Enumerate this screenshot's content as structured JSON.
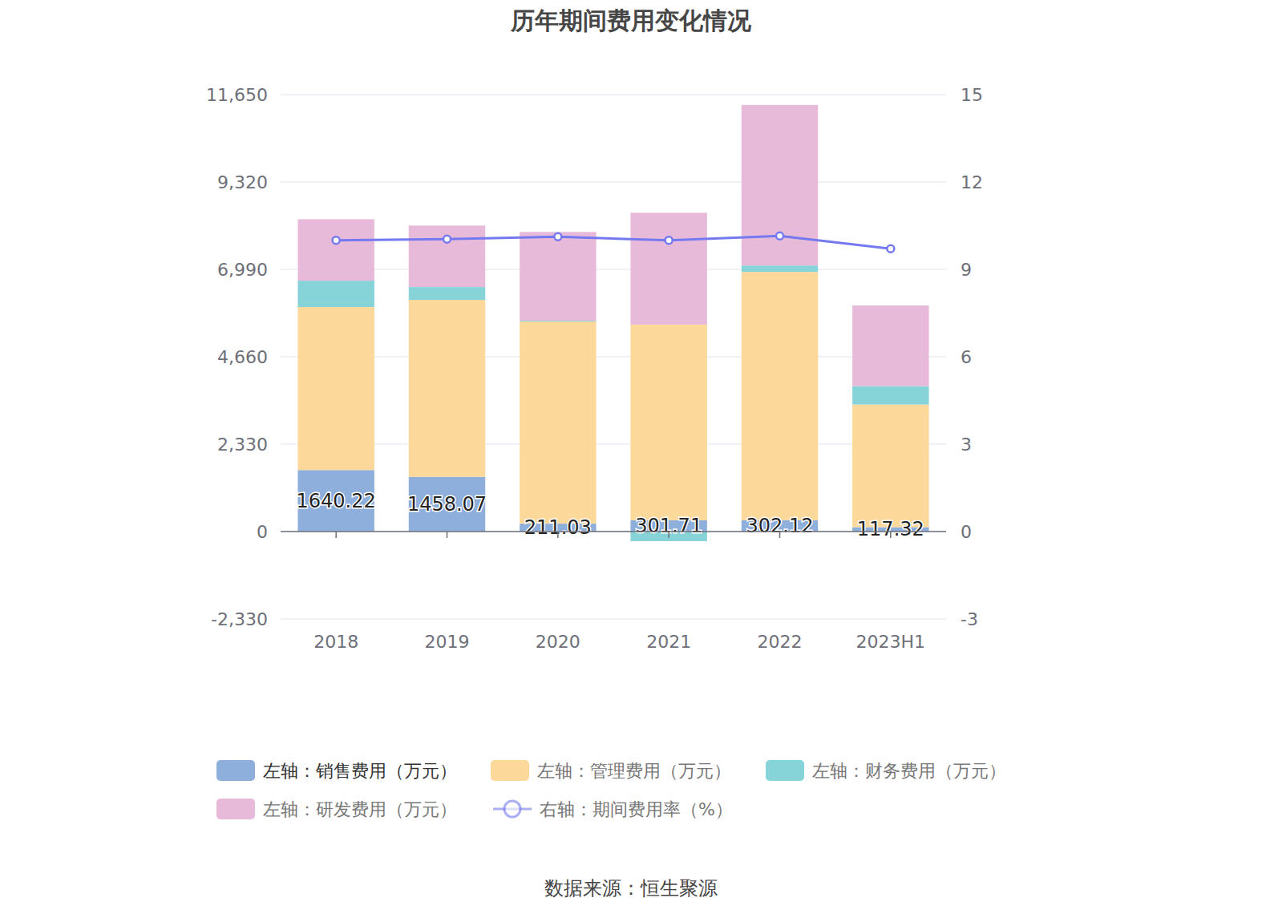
{
  "chart_data": {
    "type": "bar",
    "title": "历年期间费用变化情况",
    "source": "数据来源：恒生聚源",
    "categories": [
      "2018",
      "2019",
      "2020",
      "2021",
      "2022",
      "2023H1"
    ],
    "stacked": true,
    "grid": true,
    "legend": "bottom",
    "ylim": [
      -2330,
      11650
    ],
    "yticks": [
      {
        "value": -2330,
        "label": "-2,330"
      },
      0,
      {
        "value": 2330,
        "label": "2,330"
      },
      {
        "value": 4660,
        "label": "4,660"
      },
      {
        "value": 6990,
        "label": "6,990"
      },
      {
        "value": 9320,
        "label": "9,320"
      },
      {
        "value": 11650,
        "label": "11,650"
      }
    ],
    "y2lim": [
      -3,
      15
    ],
    "y2ticks": [
      -3,
      0,
      3,
      6,
      9,
      12,
      15
    ],
    "series": [
      {
        "name": "左轴：销售费用（万元）",
        "type": "bar",
        "color": "#8eaedb",
        "data_labels": true,
        "values": [
          1640.22,
          1458.07,
          211.03,
          301.71,
          302.12,
          117.32
        ]
      },
      {
        "name": "左轴：管理费用（万元）",
        "type": "bar",
        "color": "#fdd89b",
        "values": [
          4345,
          4719,
          5391,
          5215,
          6621,
          3270
        ]
      },
      {
        "name": "左轴：财务费用（万元）",
        "type": "bar",
        "color": "#86d4d8",
        "values": [
          703,
          341,
          20,
          -256,
          170,
          490
        ]
      },
      {
        "name": "左轴：研发费用（万元）",
        "type": "bar",
        "color": "#e8bada",
        "values": [
          1640,
          1640,
          2366,
          2982,
          4281,
          2151
        ]
      },
      {
        "name": "右轴：期间费用率（%）",
        "type": "line",
        "axis": "y2",
        "color": "#7479f0",
        "marker": "circle",
        "values": [
          10.0,
          10.04,
          10.12,
          10.0,
          10.15,
          9.71
        ]
      }
    ]
  }
}
